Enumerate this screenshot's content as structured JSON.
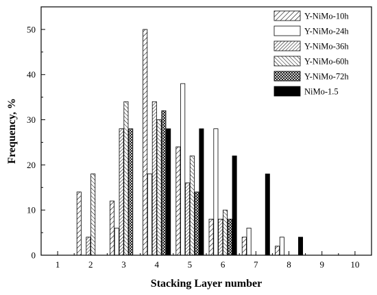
{
  "chart_data": {
    "type": "bar",
    "xlabel": "Stacking Layer number",
    "ylabel": "Frequency, %",
    "xlim": [
      0.5,
      10.5
    ],
    "ylim": [
      0,
      55
    ],
    "x_ticks": [
      1,
      2,
      3,
      4,
      5,
      6,
      7,
      8,
      9,
      10
    ],
    "y_ticks": [
      0,
      10,
      20,
      30,
      40,
      50
    ],
    "grid": false,
    "legend_position": "top-right",
    "series": [
      {
        "name": "Y-NiMo-10h",
        "pattern": "diag-lr",
        "x": [
          2,
          3,
          4,
          5,
          6,
          7,
          8
        ],
        "values": [
          14,
          12,
          50,
          24,
          8,
          4,
          2
        ]
      },
      {
        "name": "Y-NiMo-24h",
        "pattern": "blank",
        "x": [
          2,
          3,
          4,
          5,
          6,
          7,
          8
        ],
        "values": [
          0,
          6,
          18,
          38,
          28,
          6,
          4
        ]
      },
      {
        "name": "Y-NiMo-36h",
        "pattern": "diag-lr-dense",
        "x": [
          2,
          3,
          4,
          5,
          6
        ],
        "values": [
          4,
          28,
          34,
          16,
          8
        ]
      },
      {
        "name": "Y-NiMo-60h",
        "pattern": "diag-rl",
        "x": [
          2,
          3,
          4,
          5,
          6
        ],
        "values": [
          18,
          34,
          30,
          22,
          10
        ]
      },
      {
        "name": "Y-NiMo-72h",
        "pattern": "crosshatch",
        "x": [
          3,
          4,
          5,
          6
        ],
        "values": [
          28,
          32,
          14,
          8
        ]
      },
      {
        "name": "NiMo-1.5",
        "pattern": "solid",
        "x": [
          4,
          5,
          6,
          7,
          8
        ],
        "values": [
          28,
          28,
          22,
          18,
          4
        ]
      }
    ]
  }
}
